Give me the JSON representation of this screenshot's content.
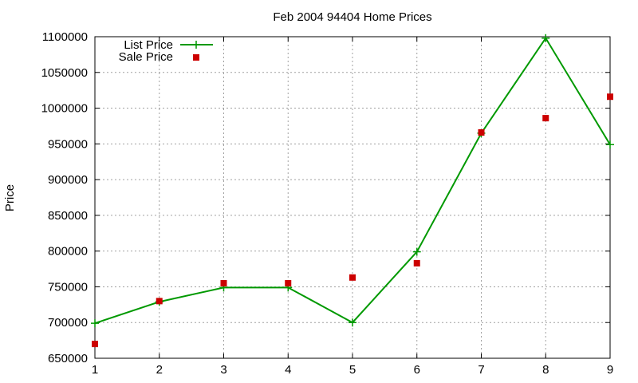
{
  "chart_data": {
    "type": "line",
    "title": "Feb 2004 94404 Home Prices",
    "xlabel": "",
    "ylabel": "Price",
    "xlim": [
      1,
      9
    ],
    "ylim": [
      650000,
      1100000
    ],
    "x_ticks": [
      "1",
      "2",
      "3",
      "4",
      "5",
      "6",
      "7",
      "8",
      "9"
    ],
    "y_ticks": [
      "650000",
      "700000",
      "750000",
      "800000",
      "850000",
      "900000",
      "950000",
      "1000000",
      "1050000",
      "1100000"
    ],
    "grid": true,
    "legend_position": "top-left",
    "x": [
      1,
      2,
      3,
      4,
      5,
      6,
      7,
      8,
      9
    ],
    "series": [
      {
        "name": "List Price",
        "style": "lines+crosses",
        "color": "#009900",
        "values": [
          699000,
          729000,
          749000,
          749000,
          700000,
          799000,
          965000,
          1098000,
          949000
        ]
      },
      {
        "name": "Sale Price",
        "style": "square-points",
        "color": "#cc0000",
        "values": [
          670000,
          730000,
          755000,
          755000,
          763000,
          783000,
          966000,
          986000,
          1016000
        ]
      }
    ]
  }
}
